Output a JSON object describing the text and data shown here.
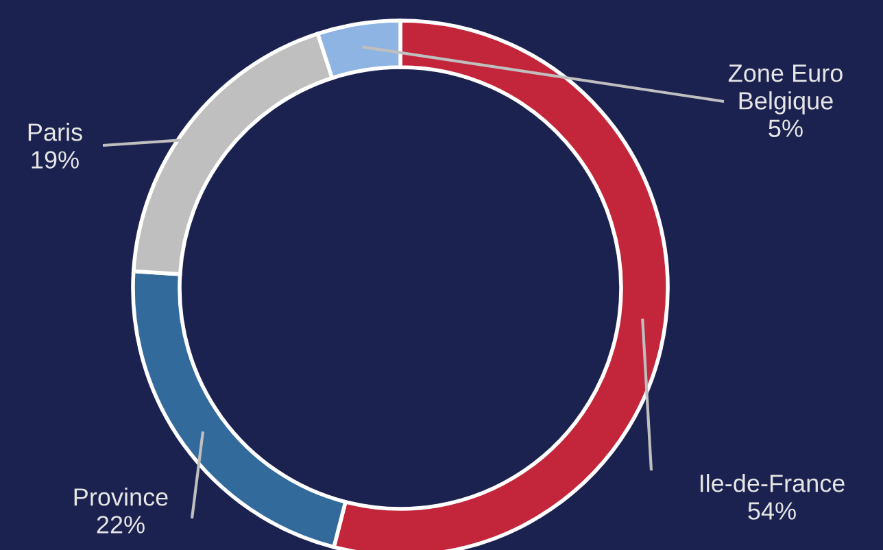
{
  "chart_data": {
    "type": "donut",
    "categories": [
      "Ile-de-France",
      "Province",
      "Paris",
      "Zone Euro\nBelgique"
    ],
    "values": [
      54,
      22,
      19,
      5
    ],
    "colors": [
      "#c3253a",
      "#336a9c",
      "#bfbfbf",
      "#8db4e2"
    ],
    "value_labels": [
      "54%",
      "22%",
      "19%",
      "5%"
    ],
    "legend": false
  }
}
